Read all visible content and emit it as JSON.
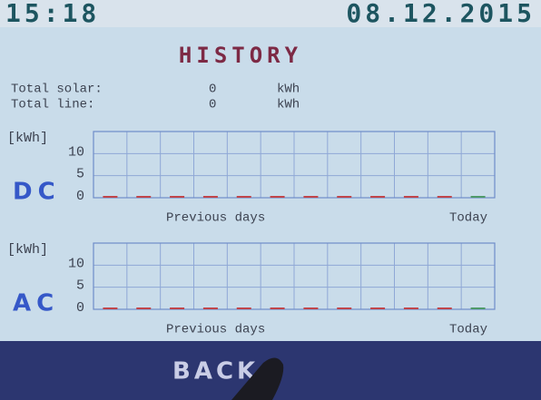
{
  "header": {
    "time": "15:18",
    "date": "08.12.2015"
  },
  "title": "HISTORY",
  "totals": [
    {
      "label": "Total solar:",
      "value": "0",
      "unit": "kWh"
    },
    {
      "label": "Total line:",
      "value": "0",
      "unit": "kWh"
    }
  ],
  "charts": [
    {
      "name": "DC",
      "unit_label": "[kWh]",
      "ylim": [
        0,
        15
      ],
      "yticks": [
        0,
        5,
        10
      ],
      "values": [
        0,
        0,
        0,
        0,
        0,
        0,
        0,
        0,
        0,
        0,
        0,
        0
      ],
      "bar_color": "#c0454a",
      "today_color": "#4f9a6a",
      "x_label_left": "Previous days",
      "x_label_right": "Today"
    },
    {
      "name": "AC",
      "unit_label": "[kWh]",
      "ylim": [
        0,
        15
      ],
      "yticks": [
        0,
        5,
        10
      ],
      "values": [
        0,
        0,
        0,
        0,
        0,
        0,
        0,
        0,
        0,
        0,
        0,
        0
      ],
      "bar_color": "#c0454a",
      "today_color": "#4f9a6a",
      "x_label_left": "Previous days",
      "x_label_right": "Today"
    }
  ],
  "button": "BACK"
}
